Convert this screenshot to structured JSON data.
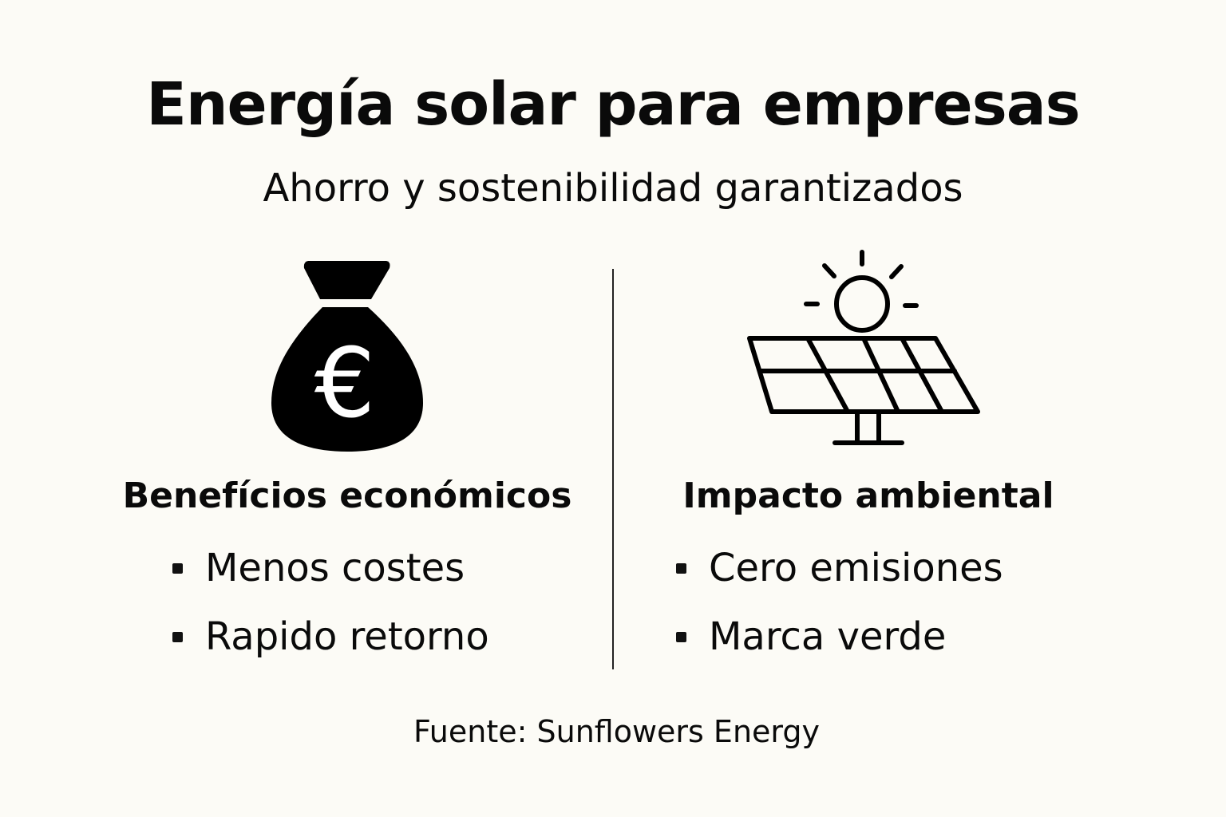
{
  "title": "Energía solar para empresas",
  "subtitle": "Ahorro y sostenibilidad garantizados",
  "left": {
    "icon": "money-bag-euro-icon",
    "symbol": "€",
    "heading": "Benefícios económicos",
    "items": [
      "Menos costes",
      "Rapido retorno"
    ]
  },
  "right": {
    "icon": "solar-panel-sun-icon",
    "heading": "Impacto ambiental",
    "items": [
      "Cero emisiones",
      "Marca verde"
    ]
  },
  "footer": "Fuente: Sunflowers Energy",
  "colors": {
    "background": "#fcfbf6",
    "ink": "#0a0a0a"
  }
}
